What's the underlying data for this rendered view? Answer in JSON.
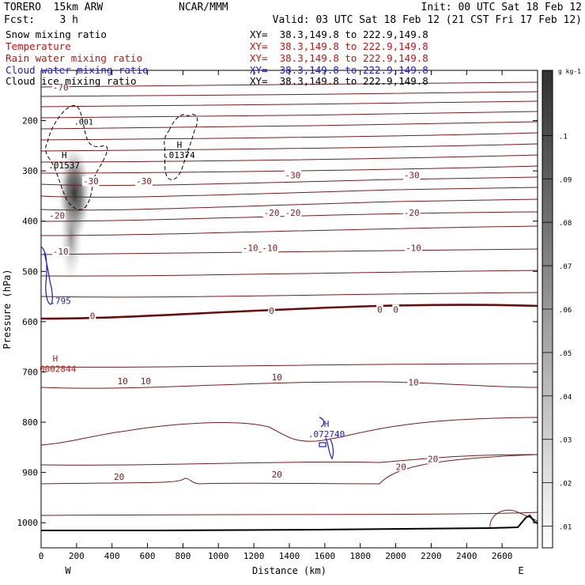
{
  "header": {
    "model": "TORERO  15km ARW",
    "forecast": "Fcst:    3 h",
    "center": "NCAR/MMM",
    "init": "Init: 00 UTC Sat 18 Feb 12",
    "valid": "Valid: 03 UTC Sat 18 Feb 12 (21 CST Fri 17 Feb 12)"
  },
  "fields": [
    {
      "name": "Snow mixing ratio",
      "xy": "XY=  38.3,149.8 to 222.9,149.8",
      "color": "#000000"
    },
    {
      "name": "Temperature",
      "xy": "XY=  38.3,149.8 to 222.9,149.8",
      "color": "#cc1111"
    },
    {
      "name": "Rain water mixing ratio",
      "xy": "XY=  38.3,149.8 to 222.9,149.8",
      "color": "#cc1111"
    },
    {
      "name": "Cloud water mixing ratio",
      "xy": "XY=  38.3,149.8 to 222.9,149.8",
      "color": "#1a1acc"
    },
    {
      "name": "Cloud ice mixing ratio",
      "xy": "XY=  38.3,149.8 to 222.9,149.8",
      "color": "#000000"
    }
  ],
  "chart_data": {
    "type": "contour",
    "xlabel": "Distance (km)",
    "ylabel": "Pressure (hPa)",
    "xlim": [
      0,
      2800
    ],
    "ylim": [
      1050,
      100
    ],
    "x_ticks": [
      0,
      200,
      400,
      600,
      800,
      1000,
      1200,
      1400,
      1600,
      1800,
      2000,
      2200,
      2400,
      2600
    ],
    "y_ticks": [
      200,
      300,
      400,
      500,
      600,
      700,
      800,
      900,
      1000
    ],
    "x_end_labels": {
      "left": "W",
      "right": "E"
    },
    "colorbar": {
      "unit": "g kg-1",
      "ticks": [
        0.01,
        0.02,
        0.03,
        0.04,
        0.05,
        0.06,
        0.07,
        0.08,
        0.09,
        0.1
      ],
      "tick_labels": [
        ".01",
        ".02",
        ".03",
        ".04",
        ".05",
        ".06",
        ".07",
        ".08",
        ".09",
        ".1"
      ],
      "range": [
        0.005,
        0.115
      ]
    },
    "temperature_labels": [
      {
        "x": 110,
        "p": 135,
        "text": "-70"
      },
      {
        "x": 280,
        "p": 322,
        "text": "-30"
      },
      {
        "x": 580,
        "p": 322,
        "text": "-30"
      },
      {
        "x": 1420,
        "p": 310,
        "text": "-30"
      },
      {
        "x": 2090,
        "p": 310,
        "text": "-30"
      },
      {
        "x": 90,
        "p": 390,
        "text": "-20"
      },
      {
        "x": 1300,
        "p": 385,
        "text": "-20"
      },
      {
        "x": 1420,
        "p": 385,
        "text": "-20"
      },
      {
        "x": 2090,
        "p": 385,
        "text": "-20"
      },
      {
        "x": 110,
        "p": 462,
        "text": "-10"
      },
      {
        "x": 1180,
        "p": 455,
        "text": "-10"
      },
      {
        "x": 1290,
        "p": 455,
        "text": "-10"
      },
      {
        "x": 2100,
        "p": 455,
        "text": "-10"
      },
      {
        "x": 290,
        "p": 590,
        "text": "0"
      },
      {
        "x": 1300,
        "p": 580,
        "text": "0"
      },
      {
        "x": 1910,
        "p": 577,
        "text": "0"
      },
      {
        "x": 2000,
        "p": 577,
        "text": "0"
      },
      {
        "x": 460,
        "p": 720,
        "text": "10"
      },
      {
        "x": 590,
        "p": 720,
        "text": "10"
      },
      {
        "x": 1330,
        "p": 712,
        "text": "10"
      },
      {
        "x": 2100,
        "p": 722,
        "text": "10"
      },
      {
        "x": 440,
        "p": 910,
        "text": "20"
      },
      {
        "x": 1330,
        "p": 905,
        "text": "20"
      },
      {
        "x": 2030,
        "p": 890,
        "text": "20"
      },
      {
        "x": 2210,
        "p": 875,
        "text": "20"
      }
    ],
    "extrema": [
      {
        "x": 130,
        "p": 290,
        "label": "H",
        "value": ".01537",
        "color": "#000000"
      },
      {
        "x": 780,
        "p": 270,
        "label": "H",
        "value": ".01374",
        "color": "#000000"
      },
      {
        "x": 110,
        "p": 560,
        "label": "",
        "value": ".795",
        "color": "#1a1acc"
      },
      {
        "x": 80,
        "p": 695,
        "label": "H",
        "value": ".0002844",
        "color": "#cc1111"
      },
      {
        "x": 1610,
        "p": 825,
        "label": "H",
        "value": ".072740",
        "color": "#1a1acc"
      }
    ],
    "contour_labels": [
      {
        "x": 240,
        "p": 203,
        "text": ".001",
        "color": "#000000"
      }
    ]
  }
}
